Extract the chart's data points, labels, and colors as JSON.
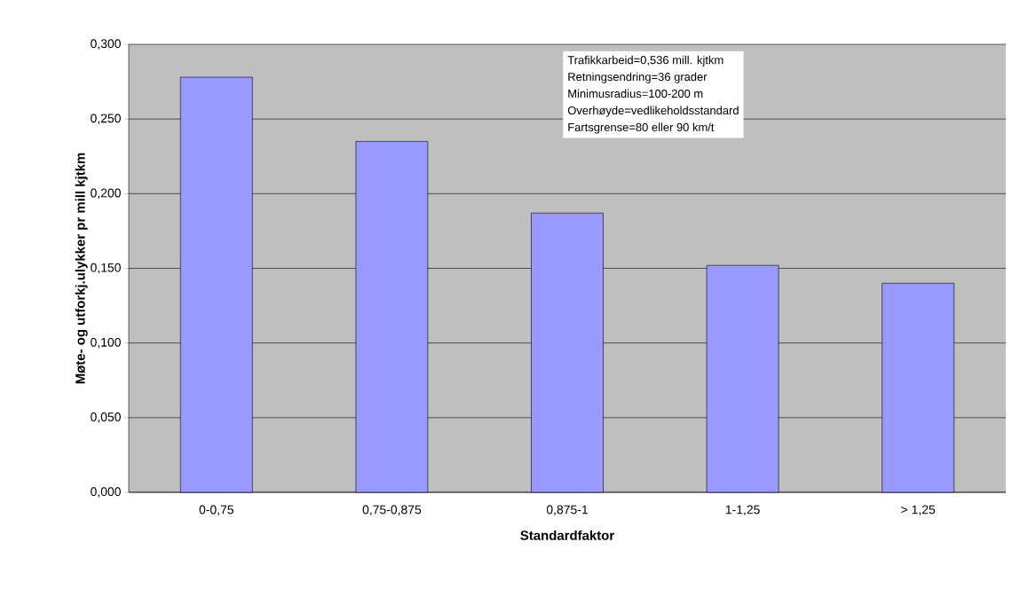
{
  "chart_data": {
    "type": "bar",
    "xlabel": "Standardfaktor",
    "ylabel": "Møte- og utforkj.ulykker pr mill kjtkm",
    "categories": [
      "0-0,75",
      "0,75-0,875",
      "0,875-1",
      "1-1,25",
      "> 1,25"
    ],
    "values": [
      0.278,
      0.235,
      0.187,
      0.152,
      0.14
    ],
    "color": "#9999ff",
    "ylim": [
      0,
      0.3
    ],
    "yticks": [
      {
        "value": 0,
        "label": "0,000"
      },
      {
        "value": 0.05,
        "label": "0,050"
      },
      {
        "value": 0.1,
        "label": "0,100"
      },
      {
        "value": 0.15,
        "label": "0,150"
      },
      {
        "value": 0.2,
        "label": "0,200"
      },
      {
        "value": 0.25,
        "label": "0,250"
      },
      {
        "value": 0.3,
        "label": "0,300"
      }
    ],
    "grid": "y",
    "annotations": [
      "Trafikkarbeid=0,536 mill. kjtkm",
      "Retningsendring=36 grader",
      "Minimusradius=100-200 m",
      "Overhøyde=vedlikeholdsstandard",
      "Fartsgrense=80 eller 90 km/t"
    ]
  }
}
